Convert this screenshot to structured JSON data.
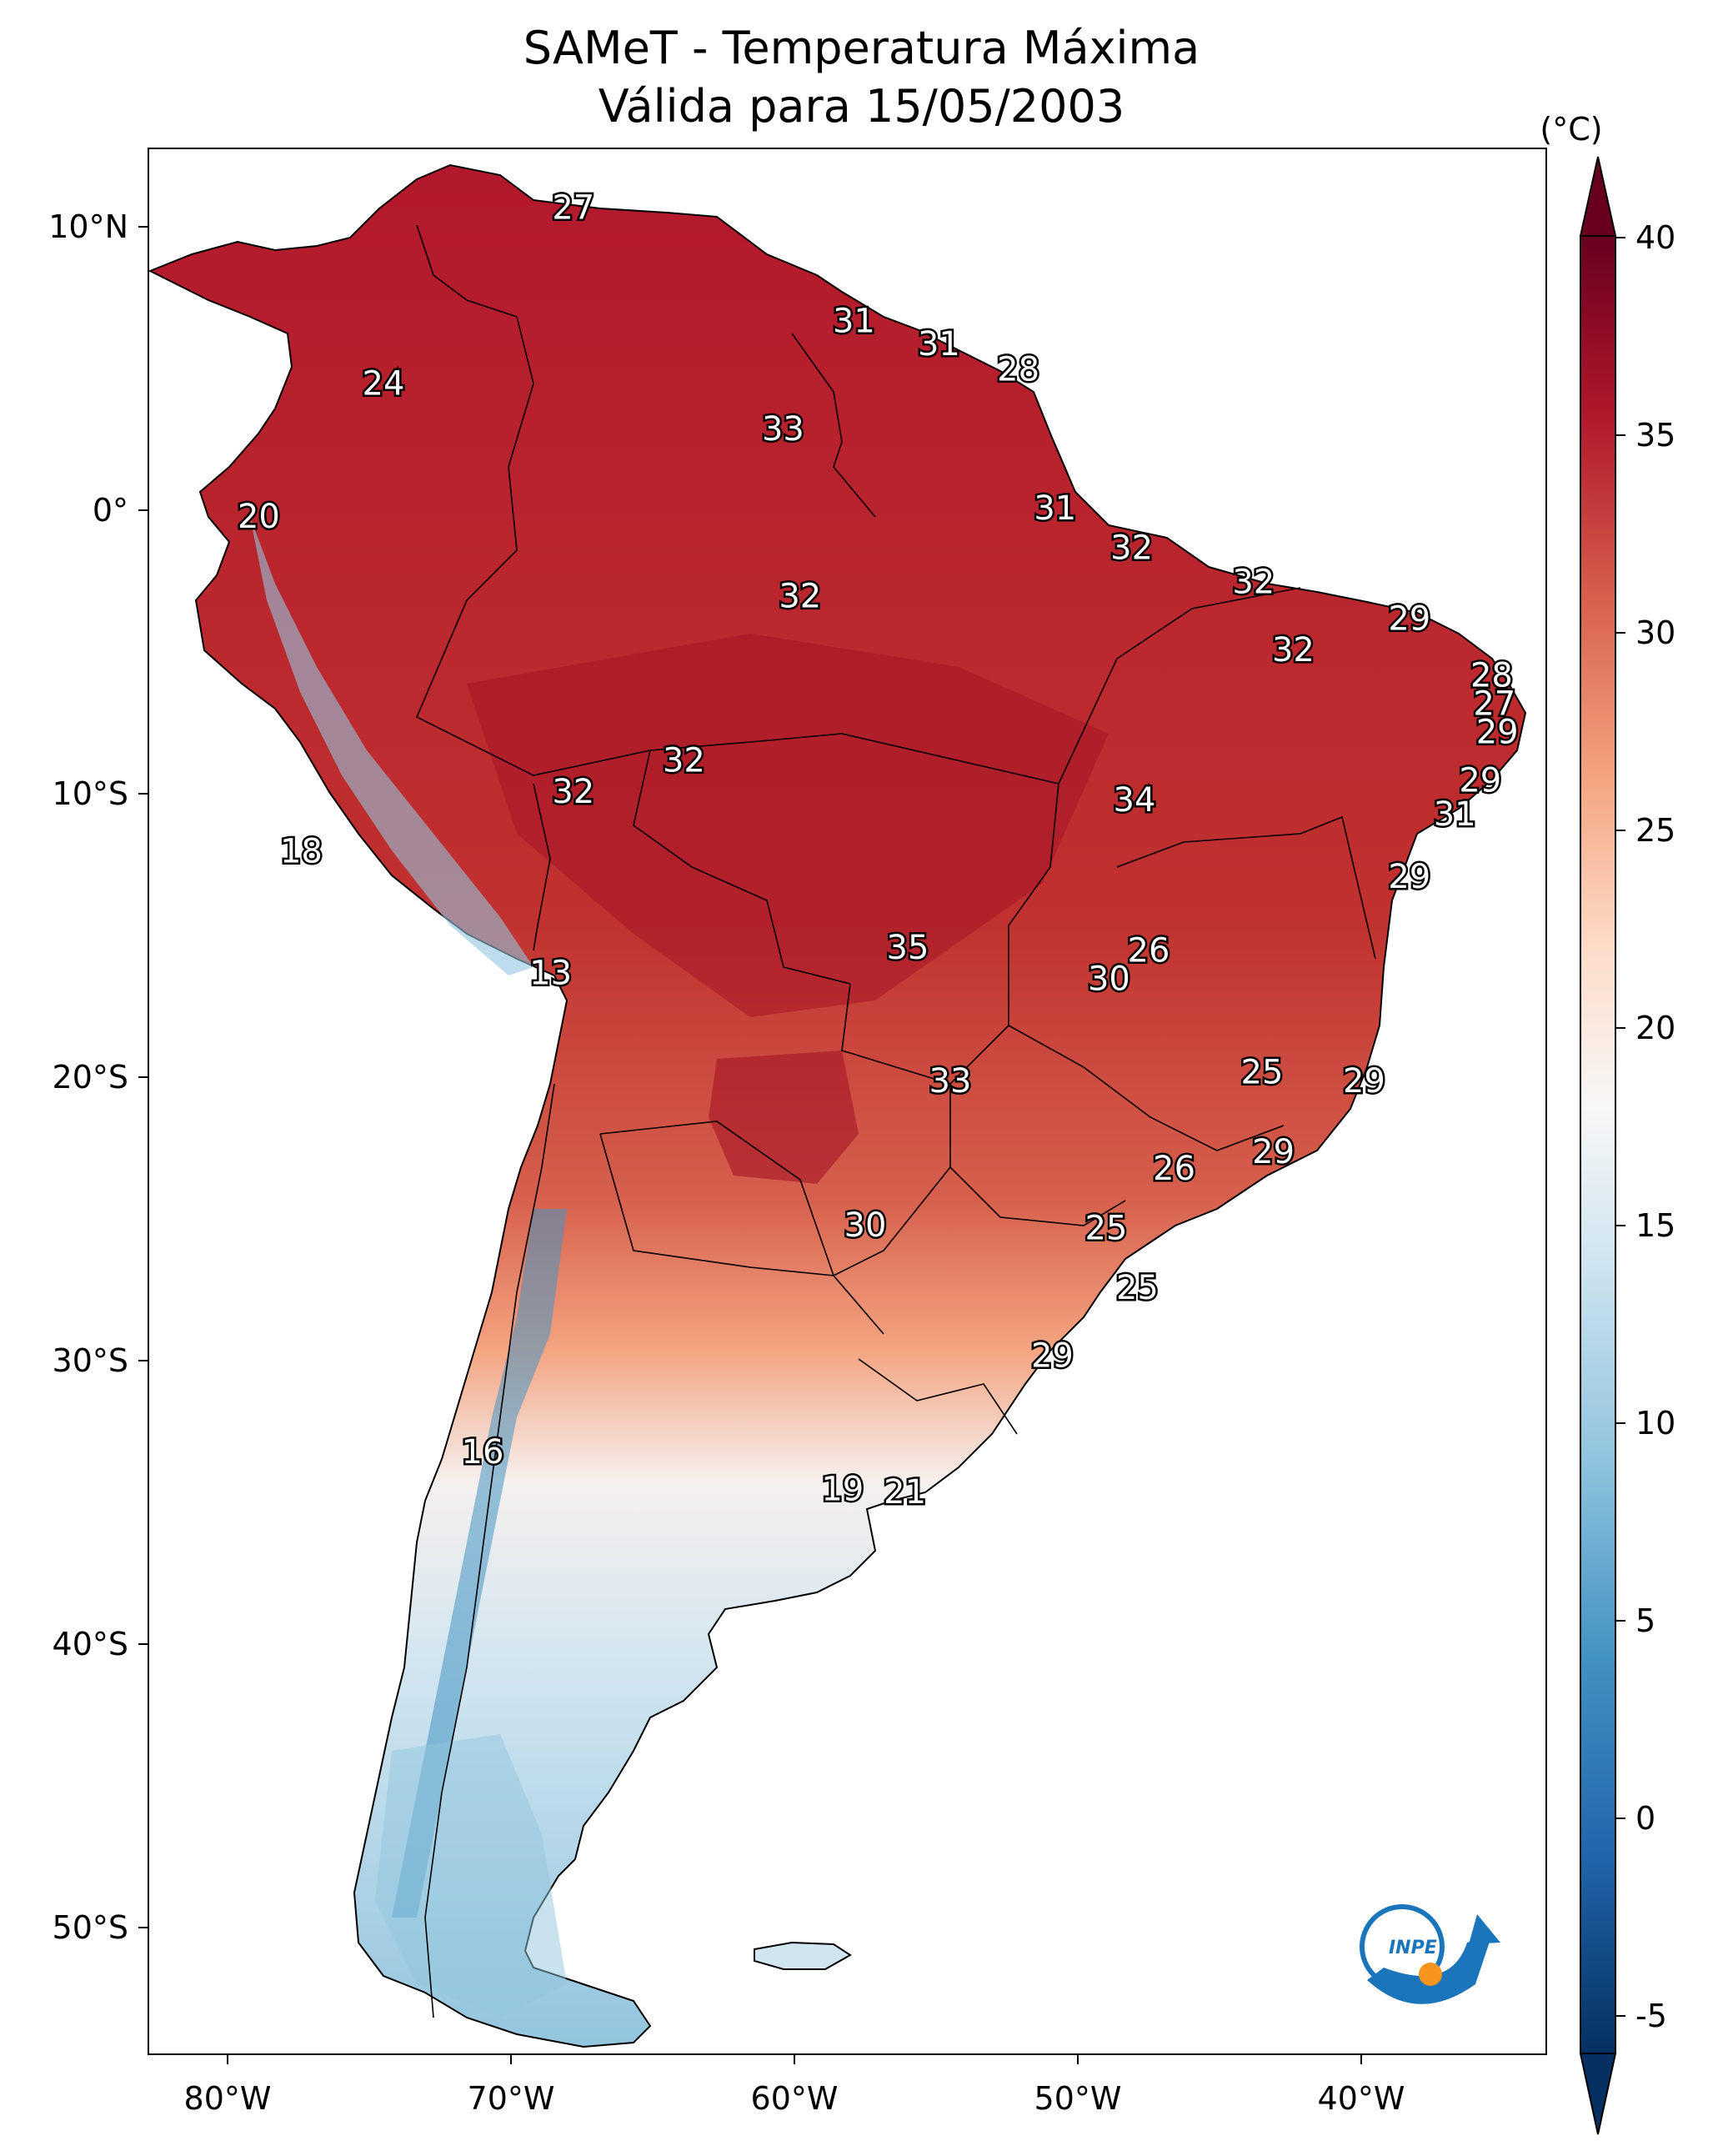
{
  "title": {
    "line1": "SAMeT - Temperatura Máxima",
    "line2": "Válida para 15/05/2003"
  },
  "colorbar": {
    "unit": "(°C)",
    "min": -5,
    "max": 40,
    "ticks": [
      "-5",
      "0",
      "5",
      "10",
      "15",
      "20",
      "25",
      "30",
      "35",
      "40"
    ],
    "colors": [
      "#053061",
      "#2166ac",
      "#4393c3",
      "#92c5de",
      "#d1e5f0",
      "#f7f7f7",
      "#fddbc7",
      "#f4a582",
      "#d6604d",
      "#b2182b",
      "#67001f"
    ]
  },
  "axes": {
    "lon_ticks": [
      "80°W",
      "70°W",
      "60°W",
      "50°W",
      "40°W"
    ],
    "lat_ticks": [
      "10°N",
      "0°",
      "10°S",
      "20°S",
      "30°S",
      "40°S",
      "50°S"
    ]
  },
  "temperature_labels": [
    {
      "text": "27",
      "lon": -67.8,
      "lat": 10.6
    },
    {
      "text": "24",
      "lon": -74.5,
      "lat": 4.4
    },
    {
      "text": "31",
      "lon": -57.9,
      "lat": 6.6
    },
    {
      "text": "31",
      "lon": -54.9,
      "lat": 5.8
    },
    {
      "text": "28",
      "lon": -52.1,
      "lat": 4.9
    },
    {
      "text": "33",
      "lon": -60.4,
      "lat": 2.8
    },
    {
      "text": "20",
      "lon": -78.9,
      "lat": -0.3
    },
    {
      "text": "31",
      "lon": -50.8,
      "lat": 0.0
    },
    {
      "text": "32",
      "lon": -48.1,
      "lat": -1.4
    },
    {
      "text": "32",
      "lon": -59.8,
      "lat": -3.1
    },
    {
      "text": "32",
      "lon": -43.8,
      "lat": -2.6
    },
    {
      "text": "29",
      "lon": -38.3,
      "lat": -3.9
    },
    {
      "text": "32",
      "lon": -42.4,
      "lat": -5.0
    },
    {
      "text": "28",
      "lon": -35.4,
      "lat": -5.9
    },
    {
      "text": "27",
      "lon": -35.3,
      "lat": -6.9
    },
    {
      "text": "29",
      "lon": -35.2,
      "lat": -7.9
    },
    {
      "text": "32",
      "lon": -63.9,
      "lat": -8.9
    },
    {
      "text": "32",
      "lon": -67.8,
      "lat": -10.0
    },
    {
      "text": "34",
      "lon": -48.0,
      "lat": -10.3
    },
    {
      "text": "29",
      "lon": -35.8,
      "lat": -9.6
    },
    {
      "text": "31",
      "lon": -36.7,
      "lat": -10.8
    },
    {
      "text": "18",
      "lon": -77.4,
      "lat": -12.1
    },
    {
      "text": "29",
      "lon": -38.3,
      "lat": -13.0
    },
    {
      "text": "26",
      "lon": -47.5,
      "lat": -15.6
    },
    {
      "text": "35",
      "lon": -56.0,
      "lat": -15.5
    },
    {
      "text": "30",
      "lon": -48.9,
      "lat": -16.6
    },
    {
      "text": "13",
      "lon": -68.6,
      "lat": -16.4
    },
    {
      "text": "25",
      "lon": -43.5,
      "lat": -19.9
    },
    {
      "text": "29",
      "lon": -39.9,
      "lat": -20.2
    },
    {
      "text": "33",
      "lon": -54.5,
      "lat": -20.2
    },
    {
      "text": "29",
      "lon": -43.1,
      "lat": -22.7
    },
    {
      "text": "26",
      "lon": -46.6,
      "lat": -23.3
    },
    {
      "text": "30",
      "lon": -57.5,
      "lat": -25.3
    },
    {
      "text": "25",
      "lon": -49.0,
      "lat": -25.4
    },
    {
      "text": "25",
      "lon": -47.9,
      "lat": -27.5
    },
    {
      "text": "29",
      "lon": -50.9,
      "lat": -29.9
    },
    {
      "text": "16",
      "lon": -71.0,
      "lat": -33.3
    },
    {
      "text": "19",
      "lon": -58.3,
      "lat": -34.6
    },
    {
      "text": "21",
      "lon": -56.1,
      "lat": -34.7
    }
  ],
  "logo": {
    "text": "INPE"
  }
}
